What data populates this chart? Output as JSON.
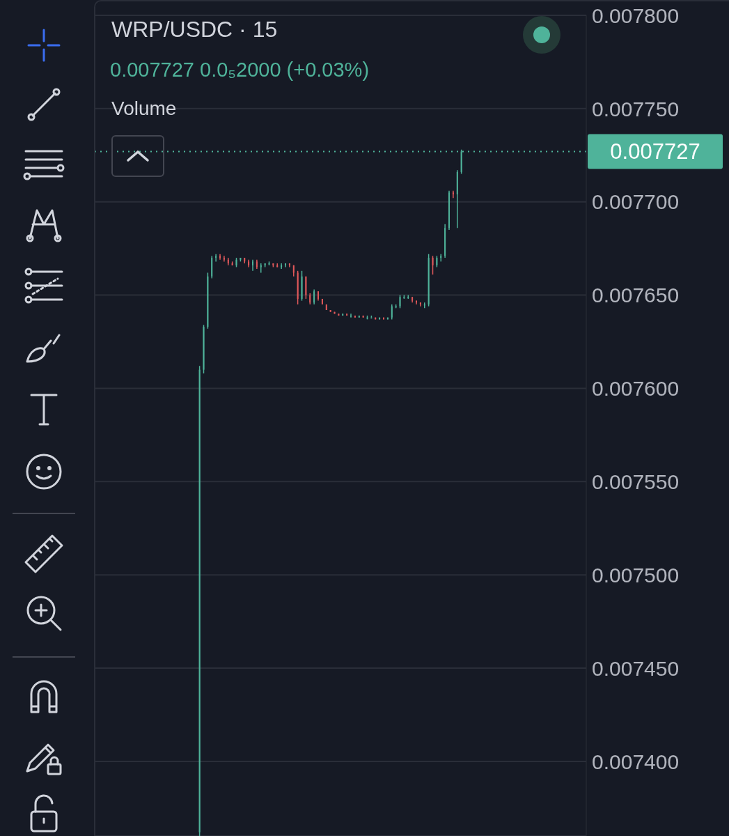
{
  "chart_data": {
    "type": "candlestick",
    "title": "WRP/USDC · 15",
    "subtitle": "0.007727  0.0₅2000 (+0.03%)",
    "annotations": [
      "Volume"
    ],
    "categories": [
      null,
      null,
      null,
      null,
      null,
      null,
      null,
      null,
      null,
      null,
      null,
      null,
      null,
      null,
      null,
      null,
      null,
      null,
      null,
      null,
      null,
      null,
      null,
      null,
      null,
      null,
      null,
      null,
      null,
      null,
      null,
      null,
      null,
      null,
      null,
      null,
      null,
      null,
      null,
      null,
      null,
      null,
      null,
      null,
      null,
      null,
      null,
      null,
      null,
      null,
      null,
      null,
      null,
      null,
      null,
      null,
      null,
      null,
      null,
      null,
      null,
      null,
      null,
      null,
      null,
      null,
      null,
      null,
      null,
      null,
      null,
      null,
      null,
      null,
      null,
      null,
      null,
      null,
      null,
      null,
      null,
      null,
      null,
      null,
      null,
      null,
      null,
      null,
      null,
      null,
      null,
      null,
      null,
      null,
      null,
      null,
      null,
      null,
      null,
      null,
      null,
      null,
      null,
      null,
      null,
      null,
      null,
      null,
      null,
      null,
      null,
      null,
      null,
      null,
      null,
      null,
      null,
      null,
      null,
      null
    ],
    "ohlc": [
      null,
      null,
      null,
      null,
      null,
      null,
      null,
      null,
      null,
      null,
      null,
      null,
      null,
      null,
      null,
      null,
      null,
      null,
      null,
      null,
      null,
      null,
      null,
      null,
      null,
      [
        0.007362,
        0.007612,
        0.00736,
        0.00761
      ],
      [
        0.00761,
        0.007634,
        0.007608,
        0.007633
      ],
      [
        0.007633,
        0.007662,
        0.007632,
        0.00766
      ],
      [
        0.00766,
        0.007671,
        0.007659,
        0.00767
      ],
      [
        0.00767,
        0.007672,
        0.007668,
        0.007671
      ],
      [
        0.007671,
        0.007672,
        0.007669,
        0.00767
      ],
      [
        0.00767,
        0.007671,
        0.007668,
        0.007669
      ],
      [
        0.007669,
        0.00767,
        0.007666,
        0.007667
      ],
      [
        0.007667,
        0.007668,
        0.007666,
        0.007666
      ],
      [
        0.007666,
        0.00767,
        0.007665,
        0.007669
      ],
      [
        0.007669,
        0.00767,
        0.007668,
        0.00767
      ],
      [
        0.00767,
        0.00767,
        0.007667,
        0.007668
      ],
      [
        0.007668,
        0.007669,
        0.007665,
        0.007666
      ],
      [
        0.007666,
        0.007669,
        0.007663,
        0.007668
      ],
      [
        0.007668,
        0.007669,
        0.007664,
        0.007665
      ],
      [
        0.007665,
        0.007667,
        0.007662,
        0.007666
      ],
      [
        0.007666,
        0.007667,
        0.007665,
        0.007667
      ],
      [
        0.007667,
        0.007668,
        0.007666,
        0.007667
      ],
      [
        0.007667,
        0.007667,
        0.007665,
        0.007666
      ],
      [
        0.007666,
        0.007667,
        0.007665,
        0.007665
      ],
      [
        0.007665,
        0.007667,
        0.007664,
        0.007666
      ],
      [
        0.007666,
        0.007667,
        0.007665,
        0.007667
      ],
      [
        0.007667,
        0.007667,
        0.007665,
        0.007666
      ],
      [
        0.007666,
        0.007666,
        0.00766,
        0.007662
      ],
      [
        0.007662,
        0.007663,
        0.007645,
        0.007648
      ],
      [
        0.007648,
        0.007663,
        0.007647,
        0.00766
      ],
      [
        0.00766,
        0.00766,
        0.007648,
        0.00765
      ],
      [
        0.00765,
        0.007651,
        0.007645,
        0.007646
      ],
      [
        0.007646,
        0.007653,
        0.007645,
        0.007652
      ],
      [
        0.007652,
        0.007652,
        0.007647,
        0.007648
      ],
      [
        0.007648,
        0.007648,
        0.007645,
        0.007645
      ],
      [
        0.007645,
        0.007645,
        0.007642,
        0.007642
      ],
      [
        0.007642,
        0.007642,
        0.007641,
        0.007641
      ],
      [
        0.007641,
        0.007641,
        0.00764,
        0.00764
      ],
      [
        0.00764,
        0.00764,
        0.007639,
        0.007639
      ],
      [
        0.007639,
        0.00764,
        0.007639,
        0.00764
      ],
      [
        0.00764,
        0.00764,
        0.007639,
        0.007639
      ],
      [
        0.007639,
        0.00764,
        0.007638,
        0.007639
      ],
      [
        0.007639,
        0.007639,
        0.007638,
        0.007638
      ],
      [
        0.007638,
        0.007639,
        0.007638,
        0.007639
      ],
      [
        0.007639,
        0.007639,
        0.007638,
        0.007638
      ],
      [
        0.007638,
        0.007639,
        0.007637,
        0.007638
      ],
      [
        0.007638,
        0.007639,
        0.007638,
        0.007638
      ],
      [
        0.007638,
        0.007638,
        0.007637,
        0.007637
      ],
      [
        0.007637,
        0.007638,
        0.007637,
        0.007638
      ],
      [
        0.007638,
        0.007638,
        0.007637,
        0.007637
      ],
      [
        0.007637,
        0.007638,
        0.007637,
        0.007638
      ],
      [
        0.007638,
        0.007645,
        0.007637,
        0.007644
      ],
      [
        0.007644,
        0.007645,
        0.007643,
        0.007644
      ],
      [
        0.007644,
        0.00765,
        0.007643,
        0.007649
      ],
      [
        0.007649,
        0.00765,
        0.007648,
        0.007649
      ],
      [
        0.007649,
        0.00765,
        0.007648,
        0.007649
      ],
      [
        0.007649,
        0.007649,
        0.007646,
        0.007647
      ],
      [
        0.007647,
        0.007647,
        0.007645,
        0.007646
      ],
      [
        0.007646,
        0.007646,
        0.007644,
        0.007645
      ],
      [
        0.007645,
        0.007646,
        0.007643,
        0.007645
      ],
      [
        0.007645,
        0.007672,
        0.007644,
        0.00767
      ],
      [
        0.00767,
        0.007671,
        0.007661,
        0.007666
      ],
      [
        0.007666,
        0.007671,
        0.007665,
        0.00767
      ],
      [
        0.00767,
        0.007672,
        0.007668,
        0.007671
      ],
      [
        0.007671,
        0.007688,
        0.00767,
        0.007686
      ],
      [
        0.007686,
        0.007706,
        0.007685,
        0.007705
      ],
      [
        0.007705,
        0.007706,
        0.007702,
        0.007704
      ],
      [
        0.007704,
        0.007717,
        0.007686,
        0.007716
      ],
      [
        0.007716,
        0.007728,
        0.007715,
        0.007727
      ],
      null,
      null,
      null,
      null,
      null,
      null,
      null,
      null,
      null,
      null,
      null,
      null,
      null,
      null,
      null,
      null,
      null,
      null,
      null,
      null,
      null,
      null,
      null,
      null,
      null,
      null,
      null,
      null,
      null,
      null
    ],
    "ylim": [
      0.00736,
      0.0078
    ],
    "yticks": [
      {
        "value": 0.0074,
        "label": "0.007400"
      },
      {
        "value": 0.00745,
        "label": "0.007450"
      },
      {
        "value": 0.0075,
        "label": "0.007500"
      },
      {
        "value": 0.00755,
        "label": "0.007550"
      },
      {
        "value": 0.0076,
        "label": "0.007600"
      },
      {
        "value": 0.00765,
        "label": "0.007650"
      },
      {
        "value": 0.0077,
        "label": "0.007700"
      },
      {
        "value": 0.00775,
        "label": "0.007750"
      },
      {
        "value": 0.0078,
        "label": "0.007800"
      }
    ],
    "tick_labels": "y",
    "grid": "y",
    "ref_lines": [
      {
        "axis": "y",
        "value": 0.007727,
        "label": "0.007727",
        "color": "#4fb39a",
        "line_style": "dotted"
      }
    ]
  }
}
